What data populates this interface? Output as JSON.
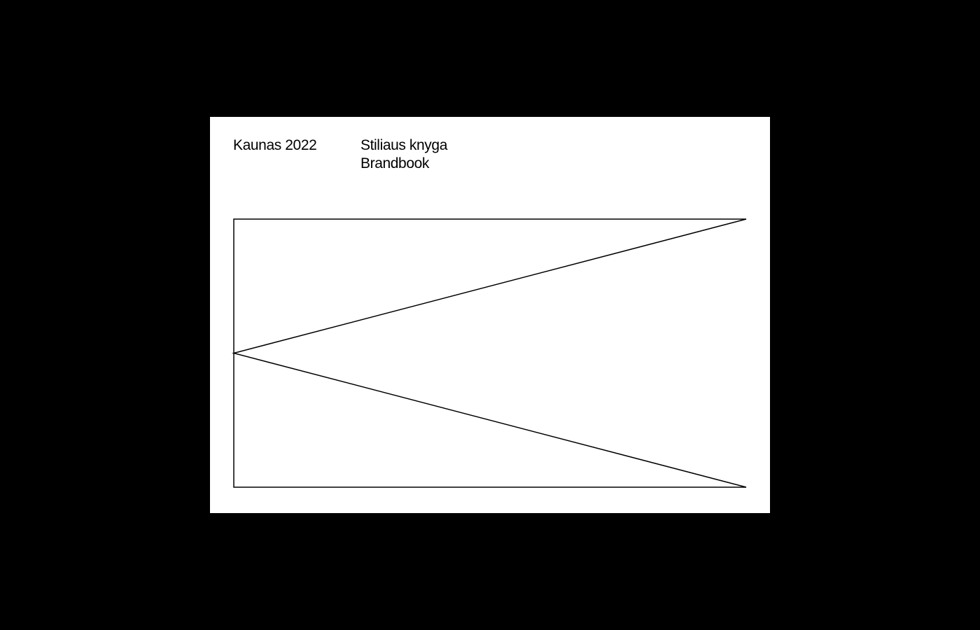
{
  "colors": {
    "background": "#000000",
    "card": "#ffffff",
    "ink": "#000000"
  },
  "header": {
    "title": "Kaunas 2022",
    "subtitle_lines": [
      "Stiliaus knyga",
      "Brandbook"
    ]
  },
  "logo": {
    "icon": "k-pennant-logo"
  }
}
